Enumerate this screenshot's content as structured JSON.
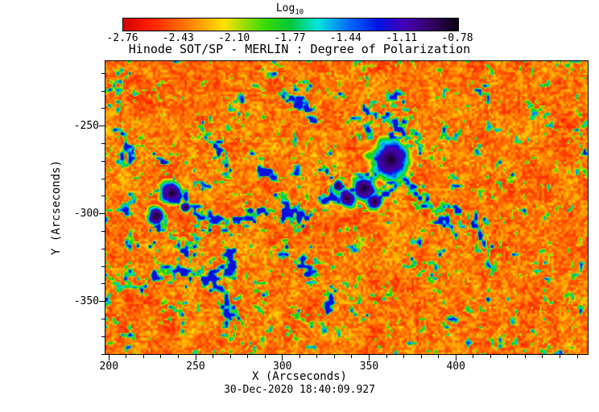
{
  "figure": {
    "title": "Hinode SOT/SP - MERLIN : Degree of Polarization",
    "xlabel": "X (Arcseconds)",
    "ylabel": "Y (Arcseconds)",
    "timestamp": "30-Dec-2020 18:40:09.927"
  },
  "colorbar": {
    "scale_label_main": "Log",
    "scale_label_sub": "10",
    "tick_labels": [
      "-2.76",
      "-2.43",
      "-2.10",
      "-1.77",
      "-1.44",
      "-1.11",
      "-0.78"
    ]
  },
  "chart_data": {
    "type": "heatmap",
    "title": "Hinode SOT/SP - MERLIN : Degree of Polarization",
    "xlabel": "X (Arcseconds)",
    "ylabel": "Y (Arcseconds)",
    "timestamp": "30-Dec-2020 18:40:09.927",
    "colorbar_label": "Log10",
    "value_range_log10": [
      -2.76,
      -0.78
    ],
    "colorbar_tick_values": [
      -2.76,
      -2.43,
      -2.1,
      -1.77,
      -1.44,
      -1.11,
      -0.78
    ],
    "x_range": [
      198,
      476
    ],
    "y_range": [
      -380,
      -213
    ],
    "x_ticks": [
      200,
      250,
      300,
      350,
      400
    ],
    "y_ticks": [
      -250,
      -300,
      -350
    ],
    "minor_tick_step": 10,
    "colormap_stops": [
      [
        0.0,
        "#d20000"
      ],
      [
        0.08,
        "#ff1e00"
      ],
      [
        0.18,
        "#ff7000"
      ],
      [
        0.3,
        "#ffe100"
      ],
      [
        0.42,
        "#3cdc00"
      ],
      [
        0.5,
        "#00c83c"
      ],
      [
        0.58,
        "#00e6dc"
      ],
      [
        0.68,
        "#0064ff"
      ],
      [
        0.76,
        "#0014e6"
      ],
      [
        0.84,
        "#4600b4"
      ],
      [
        0.92,
        "#320064"
      ],
      [
        1.0,
        "#0a000f"
      ]
    ],
    "texture": {
      "seed": 11,
      "fine_cell": 3,
      "med_cell": 9,
      "coarse_cell": 26,
      "net_cell_a": 5,
      "net_cell_b": 14
    },
    "sunspots": [
      {
        "x": 362,
        "y": -269,
        "core_r": 6.0,
        "halo_r": 15.0
      },
      {
        "x": 347,
        "y": -285,
        "core_r": 4.5,
        "halo_r": 9.0
      },
      {
        "x": 337,
        "y": -291,
        "core_r": 3.5,
        "halo_r": 7.0
      },
      {
        "x": 353,
        "y": -293,
        "core_r": 3.0,
        "halo_r": 6.0
      },
      {
        "x": 332,
        "y": -284,
        "core_r": 2.0,
        "halo_r": 4.0
      },
      {
        "x": 236,
        "y": -288,
        "core_r": 4.0,
        "halo_r": 8.0
      },
      {
        "x": 227,
        "y": -301,
        "core_r": 3.4,
        "halo_r": 6.5
      },
      {
        "x": 244,
        "y": -296,
        "core_r": 1.8,
        "halo_r": 3.5
      }
    ],
    "network_lanes": [
      {
        "width": 5.5,
        "strength": 1.0,
        "points": [
          [
            236,
            -288
          ],
          [
            246,
            -294
          ],
          [
            256,
            -300
          ],
          [
            266,
            -307
          ],
          [
            272,
            -317
          ],
          [
            270,
            -329
          ]
        ]
      },
      {
        "width": 5.5,
        "strength": 1.0,
        "points": [
          [
            266,
            -307
          ],
          [
            278,
            -302
          ],
          [
            290,
            -299
          ],
          [
            302,
            -297
          ],
          [
            312,
            -300
          ],
          [
            322,
            -294
          ],
          [
            333,
            -290
          ]
        ]
      },
      {
        "width": 5.0,
        "strength": 1.0,
        "points": [
          [
            333,
            -290
          ],
          [
            343,
            -282
          ],
          [
            351,
            -275
          ],
          [
            357,
            -269
          ]
        ]
      },
      {
        "width": 5.0,
        "strength": 0.9,
        "points": [
          [
            218,
            -342
          ],
          [
            230,
            -336
          ],
          [
            243,
            -332
          ],
          [
            255,
            -334
          ],
          [
            264,
            -342
          ],
          [
            270,
            -352
          ],
          [
            267,
            -361
          ]
        ]
      },
      {
        "width": 5.0,
        "strength": 0.9,
        "points": [
          [
            300,
            -321
          ],
          [
            311,
            -327
          ],
          [
            321,
            -335
          ],
          [
            329,
            -343
          ],
          [
            325,
            -353
          ]
        ]
      },
      {
        "width": 4.5,
        "strength": 0.85,
        "points": [
          [
            371,
            -282
          ],
          [
            381,
            -291
          ],
          [
            389,
            -301
          ],
          [
            395,
            -311
          ]
        ]
      },
      {
        "width": 5.0,
        "strength": 0.85,
        "points": [
          [
            403,
            -300
          ],
          [
            413,
            -311
          ],
          [
            419,
            -321
          ],
          [
            423,
            -331
          ]
        ]
      },
      {
        "width": 4.0,
        "strength": 0.7,
        "points": [
          [
            299,
            -231
          ],
          [
            309,
            -238
          ],
          [
            317,
            -246
          ]
        ]
      },
      {
        "width": 4.5,
        "strength": 0.8,
        "points": [
          [
            351,
            -238
          ],
          [
            361,
            -245
          ],
          [
            369,
            -253
          ],
          [
            375,
            -261
          ]
        ]
      },
      {
        "width": 4.0,
        "strength": 0.8,
        "points": [
          [
            227,
            -301
          ],
          [
            233,
            -310
          ],
          [
            240,
            -318
          ],
          [
            247,
            -325
          ]
        ]
      },
      {
        "width": 4.0,
        "strength": 0.6,
        "points": [
          [
            208,
            -258
          ],
          [
            213,
            -278
          ],
          [
            209,
            -298
          ],
          [
            214,
            -318
          ],
          [
            209,
            -338
          ]
        ]
      },
      {
        "width": 5.0,
        "strength": 0.75,
        "points": [
          [
            346,
            -256
          ],
          [
            356,
            -252
          ],
          [
            366,
            -252
          ],
          [
            375,
            -258
          ]
        ]
      },
      {
        "width": 5.0,
        "strength": 0.75,
        "points": [
          [
            344,
            -279
          ],
          [
            348,
            -287
          ],
          [
            356,
            -291
          ],
          [
            364,
            -287
          ],
          [
            370,
            -280
          ]
        ]
      },
      {
        "width": 4.0,
        "strength": 0.7,
        "points": [
          [
            282,
            -268
          ],
          [
            292,
            -276
          ],
          [
            300,
            -286
          ],
          [
            302,
            -296
          ]
        ]
      },
      {
        "width": 4.0,
        "strength": 0.6,
        "points": [
          [
            318,
            -360
          ],
          [
            330,
            -366
          ],
          [
            342,
            -362
          ],
          [
            352,
            -356
          ]
        ]
      },
      {
        "width": 4.0,
        "strength": 0.65,
        "points": [
          [
            254,
            -252
          ],
          [
            262,
            -260
          ],
          [
            268,
            -270
          ],
          [
            266,
            -280
          ]
        ]
      },
      {
        "width": 4.0,
        "strength": 0.7,
        "points": [
          [
            224,
            -264
          ],
          [
            232,
            -272
          ],
          [
            236,
            -280
          ],
          [
            236,
            -288
          ]
        ]
      }
    ]
  }
}
